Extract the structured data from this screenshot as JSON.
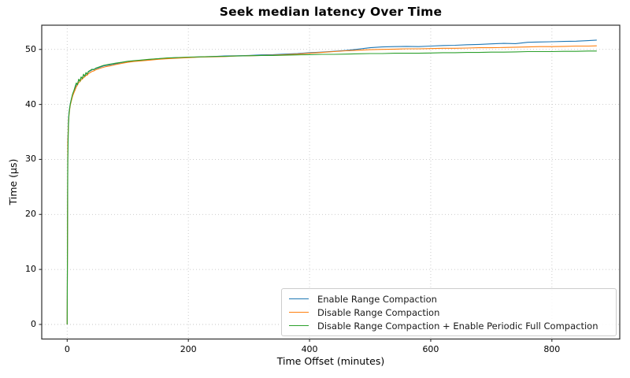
{
  "title": "Seek median latency Over Time",
  "chart_data": {
    "type": "line",
    "title": "Seek median latency Over Time",
    "xlabel": "Time Offset (minutes)",
    "ylabel": "Time (µs)",
    "xlim": [
      -42,
      912
    ],
    "ylim": [
      -2.65,
      54.4
    ],
    "xticks": [
      0,
      200,
      400,
      600,
      800
    ],
    "yticks": [
      0,
      10,
      20,
      30,
      40,
      50
    ],
    "grid": "dotted, both axes",
    "legend_position": "lower right",
    "x": [
      0,
      1,
      2,
      3,
      4,
      5,
      7,
      9,
      11,
      13,
      15,
      17,
      19,
      21,
      23,
      25,
      27,
      29,
      31,
      33,
      35,
      38,
      41,
      44,
      47,
      50,
      55,
      60,
      65,
      70,
      75,
      80,
      90,
      100,
      110,
      120,
      135,
      150,
      165,
      180,
      200,
      220,
      240,
      260,
      280,
      300,
      320,
      340,
      360,
      380,
      400,
      420,
      440,
      460,
      480,
      500,
      520,
      540,
      560,
      580,
      600,
      620,
      640,
      660,
      680,
      700,
      720,
      740,
      760,
      780,
      800,
      820,
      840,
      860,
      874
    ],
    "series": [
      {
        "name": "Enable Range Compaction",
        "color": "#1f77b4",
        "values": [
          0,
          33,
          37.0,
          38.5,
          39.3,
          40.1,
          41.0,
          41.8,
          42.4,
          42.9,
          43.6,
          43.7,
          44.4,
          44.3,
          44.9,
          44.8,
          45.3,
          45.2,
          45.6,
          45.5,
          45.9,
          46.1,
          46.3,
          46.4,
          46.5,
          46.6,
          46.8,
          47.0,
          47.1,
          47.2,
          47.3,
          47.4,
          47.6,
          47.8,
          47.9,
          48.0,
          48.15,
          48.3,
          48.4,
          48.5,
          48.55,
          48.65,
          48.7,
          48.8,
          48.85,
          48.9,
          49.0,
          49.05,
          49.15,
          49.25,
          49.4,
          49.5,
          49.65,
          49.8,
          50.05,
          50.3,
          50.45,
          50.5,
          50.55,
          50.5,
          50.6,
          50.7,
          50.75,
          50.85,
          50.9,
          51.0,
          51.1,
          51.05,
          51.3,
          51.35,
          51.4,
          51.45,
          51.5,
          51.6,
          51.7
        ]
      },
      {
        "name": "Disable Range Compaction",
        "color": "#ff7f0e",
        "values": [
          0,
          33,
          36.5,
          38.0,
          39.0,
          39.8,
          40.7,
          41.5,
          42.1,
          42.6,
          43.2,
          43.5,
          44.0,
          44.1,
          44.5,
          44.6,
          44.9,
          45.0,
          45.3,
          45.3,
          45.6,
          45.8,
          46.0,
          46.1,
          46.3,
          46.4,
          46.6,
          46.75,
          46.9,
          47.0,
          47.1,
          47.25,
          47.45,
          47.65,
          47.8,
          47.9,
          48.05,
          48.2,
          48.3,
          48.4,
          48.5,
          48.6,
          48.65,
          48.7,
          48.8,
          48.85,
          48.9,
          48.95,
          49.05,
          49.15,
          49.3,
          49.45,
          49.6,
          49.75,
          49.85,
          49.95,
          50.0,
          50.05,
          50.1,
          50.1,
          50.15,
          50.2,
          50.2,
          50.25,
          50.3,
          50.3,
          50.35,
          50.4,
          50.45,
          50.5,
          50.5,
          50.55,
          50.6,
          50.6,
          50.65
        ]
      },
      {
        "name": "Disable Range Compaction + Enable Periodic Full Compaction",
        "color": "#2ca02c",
        "values": [
          0,
          30,
          36.0,
          38.2,
          39.2,
          40.0,
          41.0,
          41.9,
          42.5,
          43.2,
          43.9,
          43.6,
          44.6,
          44.2,
          45.0,
          44.7,
          45.5,
          45.1,
          45.8,
          45.5,
          46.0,
          46.2,
          46.4,
          46.3,
          46.6,
          46.7,
          46.9,
          47.1,
          47.2,
          47.3,
          47.4,
          47.5,
          47.65,
          47.85,
          47.95,
          48.05,
          48.2,
          48.3,
          48.45,
          48.5,
          48.6,
          48.65,
          48.7,
          48.75,
          48.8,
          48.85,
          48.9,
          48.9,
          48.95,
          49.0,
          49.05,
          49.1,
          49.1,
          49.15,
          49.2,
          49.25,
          49.25,
          49.3,
          49.3,
          49.3,
          49.35,
          49.4,
          49.4,
          49.45,
          49.45,
          49.5,
          49.5,
          49.55,
          49.6,
          49.6,
          49.6,
          49.65,
          49.65,
          49.7,
          49.7
        ]
      }
    ]
  },
  "style": {
    "grid_color": "#c6c6c6",
    "spine_color": "#2e2e2e",
    "background": "#ffffff"
  }
}
